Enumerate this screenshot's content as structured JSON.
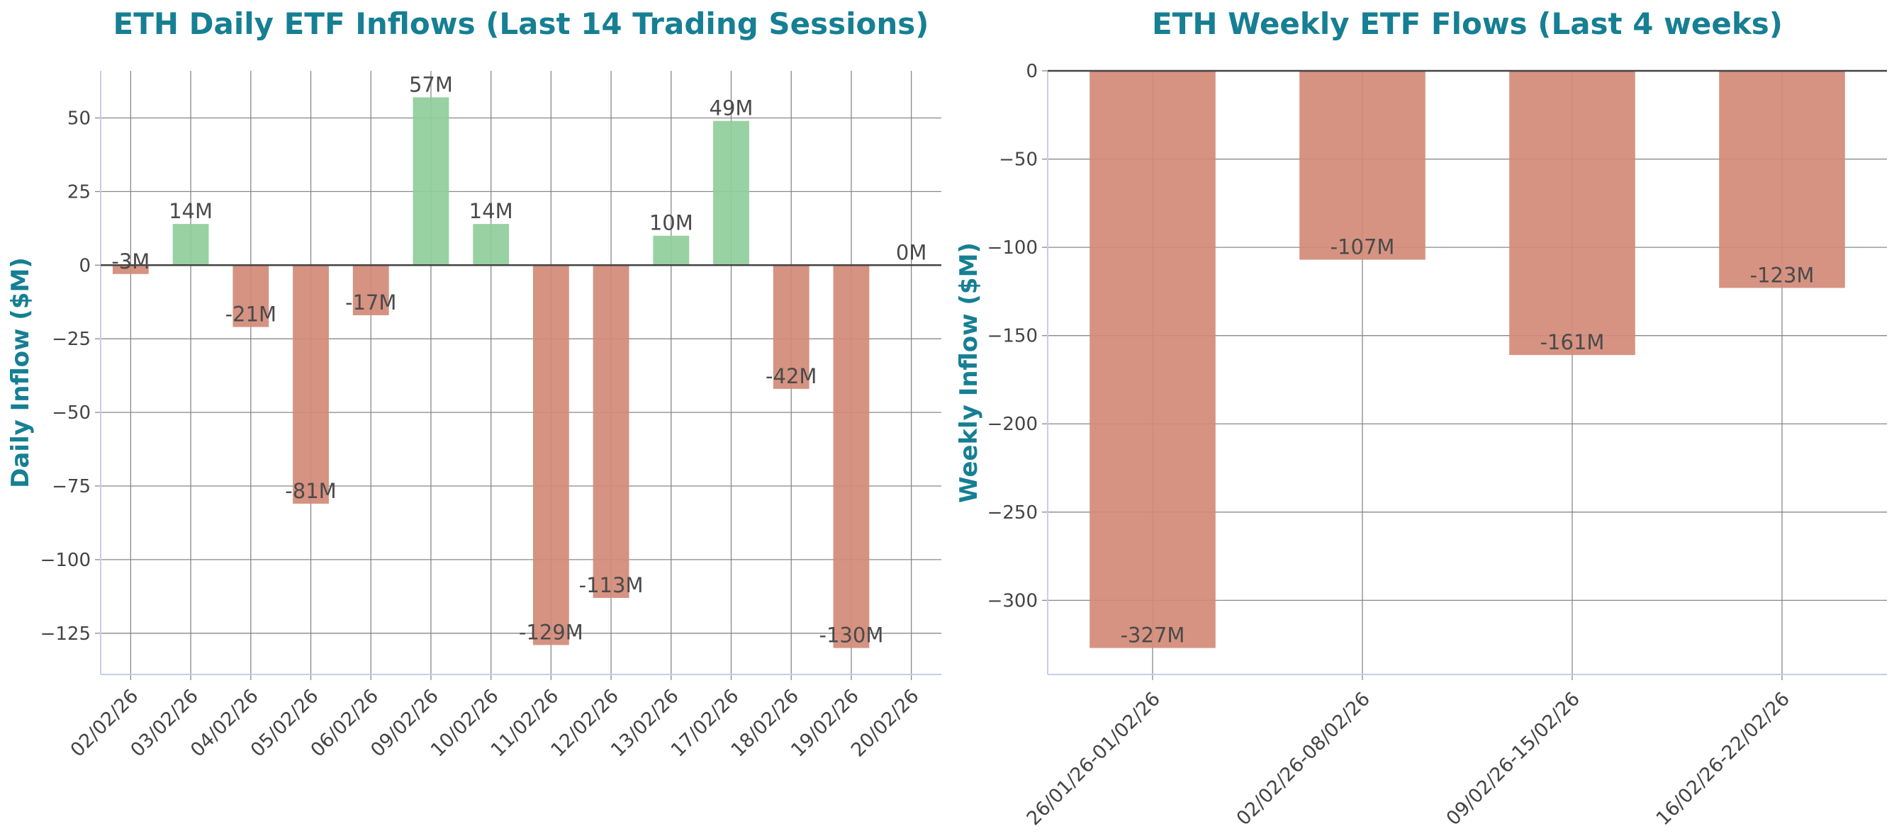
{
  "colors": {
    "title": "#167f93",
    "positive": "#8fcd9a",
    "negative": "#d38a77",
    "grid": "#888888",
    "zero_line": "#444444",
    "tick_text": "#444444",
    "label_text": "#4a4a4a",
    "spine": "#c9cde6"
  },
  "chart_data": [
    {
      "type": "bar",
      "title": "ETH Daily ETF Inflows (Last 14 Trading Sessions)",
      "xlabel": "",
      "ylabel": "Daily Inflow ($M)",
      "categories": [
        "02/02/26",
        "03/02/26",
        "04/02/26",
        "05/02/26",
        "06/02/26",
        "09/02/26",
        "10/02/26",
        "11/02/26",
        "12/02/26",
        "13/02/26",
        "17/02/26",
        "18/02/26",
        "19/02/26",
        "20/02/26"
      ],
      "values": [
        -3,
        14,
        -21,
        -81,
        -17,
        57,
        14,
        -129,
        -113,
        10,
        49,
        -42,
        -130,
        0
      ],
      "data_labels": [
        "-3M",
        "14M",
        "-21M",
        "-81M",
        "-17M",
        "57M",
        "14M",
        "-129M",
        "-113M",
        "10M",
        "49M",
        "-42M",
        "-130M",
        "0M"
      ],
      "ylim": [
        -139,
        66
      ],
      "yticks": [
        50,
        25,
        0,
        -25,
        -50,
        -75,
        -100,
        -125
      ],
      "ytick_labels": [
        "50",
        "25",
        "0",
        "−25",
        "−50",
        "−75",
        "−100",
        "−125"
      ],
      "grid": true,
      "legend": "none"
    },
    {
      "type": "bar",
      "title": "ETH Weekly ETF Flows (Last 4 weeks)",
      "xlabel": "",
      "ylabel": "Weekly Inflow ($M)",
      "categories": [
        "26/01/26-01/02/26",
        "02/02/26-08/02/26",
        "09/02/26-15/02/26",
        "16/02/26-22/02/26"
      ],
      "values": [
        -327,
        -107,
        -161,
        -123
      ],
      "data_labels": [
        "-327M",
        "-107M",
        "-161M",
        "-123M"
      ],
      "ylim": [
        -342,
        0
      ],
      "yticks": [
        0,
        -50,
        -100,
        -150,
        -200,
        -250,
        -300
      ],
      "ytick_labels": [
        "0",
        "−50",
        "−100",
        "−150",
        "−200",
        "−250",
        "−300"
      ],
      "grid": true,
      "legend": "none"
    }
  ]
}
